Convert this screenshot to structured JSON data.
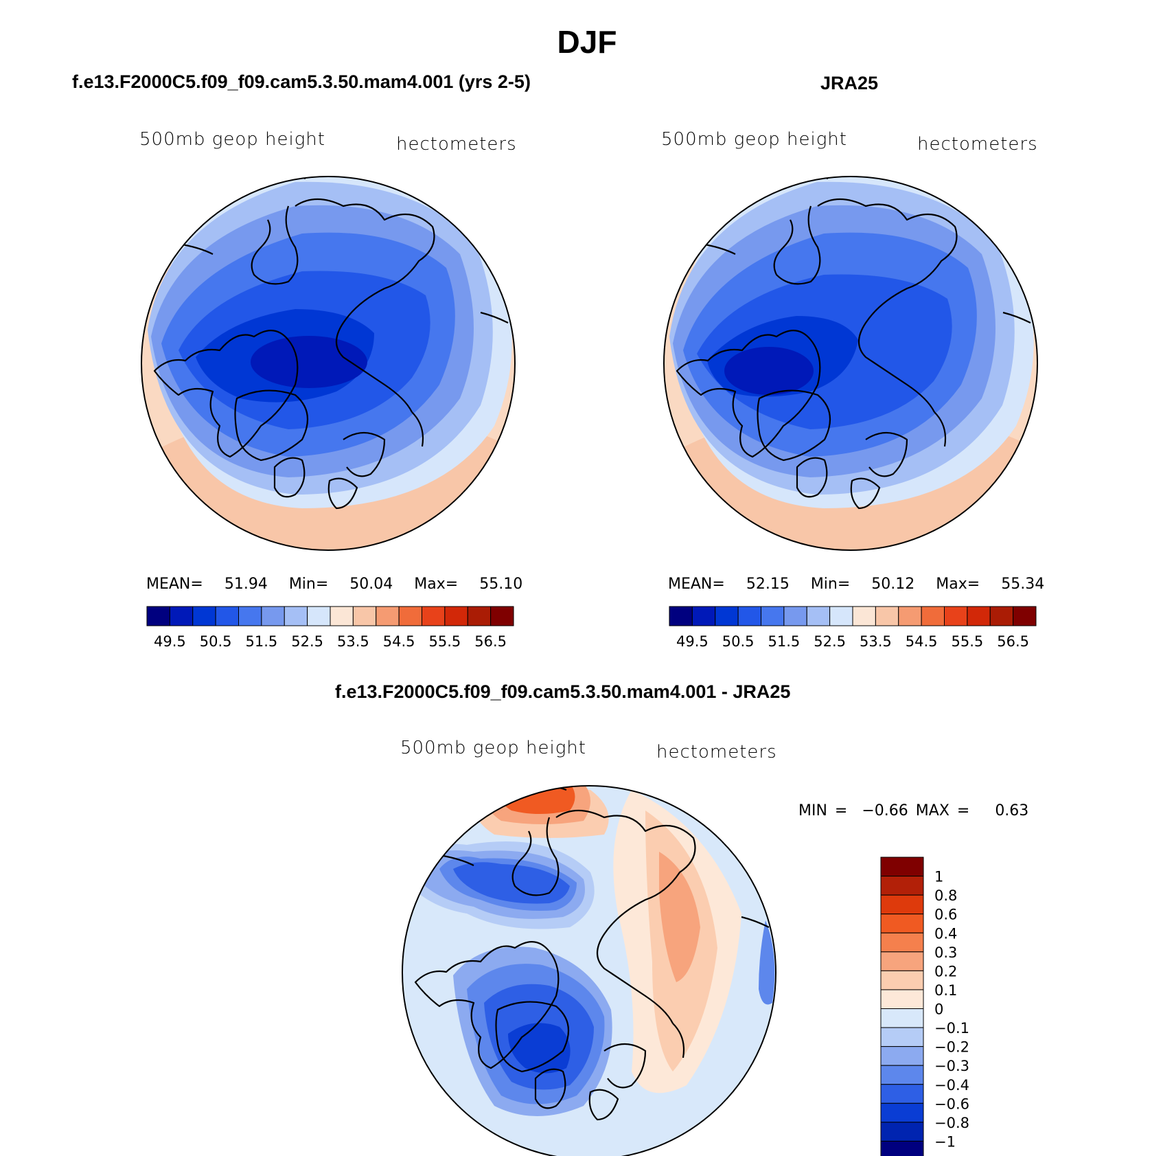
{
  "figure": {
    "title": "DJF",
    "diff_title": "f.e13.F2000C5.f09_f09.cam5.3.50.mam4.001 - JRA25"
  },
  "panels": [
    {
      "title": "f.e13.F2000C5.f09_f09.cam5.3.50.mam4.001 (yrs 2-5)",
      "variable": "500mb geop height",
      "units": "hectometers",
      "stats": {
        "mean_label": "MEAN=",
        "mean": "51.94",
        "min_label": "Min=",
        "min": "50.04",
        "max_label": "Max=",
        "max": "55.10"
      }
    },
    {
      "title": "JRA25",
      "variable": "500mb geop height",
      "units": "hectometers",
      "stats": {
        "mean_label": "MEAN=",
        "mean": "52.15",
        "min_label": "Min=",
        "min": "50.12",
        "max_label": "Max=",
        "max": "55.34"
      }
    },
    {
      "variable": "500mb geop height",
      "units": "hectometers",
      "stats": {
        "min_label": "MIN =",
        "min": "−0.66",
        "max_label": "MAX =",
        "max": "0.63"
      }
    }
  ],
  "colorbar_abs": {
    "colors": [
      "#00007f",
      "#0019b8",
      "#0037d4",
      "#2257e8",
      "#4677ee",
      "#7799ee",
      "#a5bff5",
      "#d6e6fb",
      "#fbe6d6",
      "#f8c6a8",
      "#f59b72",
      "#f06c3a",
      "#e8421a",
      "#d22808",
      "#aa1c05",
      "#7f0000"
    ],
    "labels": [
      "49.5",
      "50.5",
      "51.5",
      "52.5",
      "53.5",
      "54.5",
      "55.5",
      "56.5"
    ]
  },
  "colorbar_diff": {
    "colors": [
      "#7f0000",
      "#b22008",
      "#de3a0c",
      "#f05a22",
      "#f5804d",
      "#f7a47d",
      "#fbcdb0",
      "#fde8d8",
      "#d8e8fa",
      "#b5ccf6",
      "#8caaf0",
      "#5d87ec",
      "#2e5fe5",
      "#0a3dd4",
      "#0024b0",
      "#00007f"
    ],
    "labels": [
      "1",
      "0.8",
      "0.6",
      "0.4",
      "0.3",
      "0.2",
      "0.1",
      "0",
      "−0.1",
      "−0.2",
      "−0.3",
      "−0.4",
      "−0.6",
      "−0.8",
      "−1"
    ]
  },
  "chart_data": [
    {
      "type": "heatmap",
      "title": "f.e13.F2000C5.f09_f09.cam5.3.50.mam4.001 (yrs 2-5)",
      "subtitle": "500mb geop height",
      "units": "hectometers",
      "projection": "north polar stereographic",
      "levels": [
        49.5,
        50.0,
        50.5,
        51.0,
        51.5,
        52.0,
        52.5,
        53.0,
        53.5,
        54.0,
        54.5,
        55.0,
        55.5,
        56.0,
        56.5
      ],
      "mean": 51.94,
      "min": 50.04,
      "max": 55.1
    },
    {
      "type": "heatmap",
      "title": "JRA25",
      "subtitle": "500mb geop height",
      "units": "hectometers",
      "projection": "north polar stereographic",
      "levels": [
        49.5,
        50.0,
        50.5,
        51.0,
        51.5,
        52.0,
        52.5,
        53.0,
        53.5,
        54.0,
        54.5,
        55.0,
        55.5,
        56.0,
        56.5
      ],
      "mean": 52.15,
      "min": 50.12,
      "max": 55.34
    },
    {
      "type": "heatmap",
      "title": "f.e13.F2000C5.f09_f09.cam5.3.50.mam4.001 - JRA25",
      "subtitle": "500mb geop height",
      "units": "hectometers",
      "projection": "north polar stereographic",
      "levels": [
        -1,
        -0.8,
        -0.6,
        -0.4,
        -0.3,
        -0.2,
        -0.1,
        0,
        0.1,
        0.2,
        0.3,
        0.4,
        0.6,
        0.8,
        1
      ],
      "min": -0.66,
      "max": 0.63
    }
  ]
}
